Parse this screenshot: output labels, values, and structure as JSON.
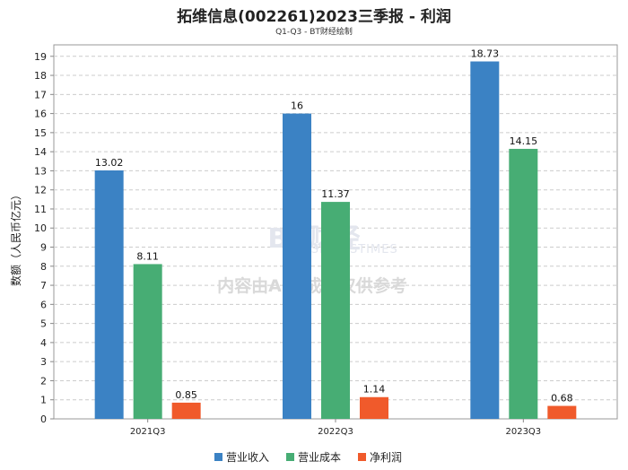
{
  "chart_data": {
    "type": "bar",
    "title": "拓维信息(002261)2023三季报 - 利润",
    "subtitle": "Q1-Q3 - BT财经绘制",
    "ylabel": "数额（人民币亿元）",
    "xlabel": "",
    "categories": [
      "2021Q3",
      "2022Q3",
      "2023Q3"
    ],
    "series": [
      {
        "name": "营业收入",
        "color": "#3b82c4",
        "values": [
          13.02,
          16,
          18.73
        ],
        "labels": [
          "13.02",
          "16",
          "18.73"
        ]
      },
      {
        "name": "营业成本",
        "color": "#47ad74",
        "values": [
          8.11,
          11.37,
          14.15
        ],
        "labels": [
          "8.11",
          "11.37",
          "14.15"
        ]
      },
      {
        "name": "净利润",
        "color": "#f05a2b",
        "values": [
          0.85,
          1.14,
          0.68
        ],
        "labels": [
          "0.85",
          "1.14",
          "0.68"
        ]
      }
    ],
    "ylim": [
      0,
      19.6
    ],
    "yticks": [
      "0",
      "1",
      "2",
      "3",
      "4",
      "5",
      "6",
      "7",
      "8",
      "9",
      "10",
      "11",
      "12",
      "13",
      "14",
      "15",
      "16",
      "17",
      "18",
      "19"
    ],
    "grid": true,
    "legend_position": "bottom"
  },
  "watermark": {
    "logo_text": "BT财经",
    "logo_sub": "BUSINESSTIMES",
    "notice": "内容由AI生成，仅供参考"
  }
}
